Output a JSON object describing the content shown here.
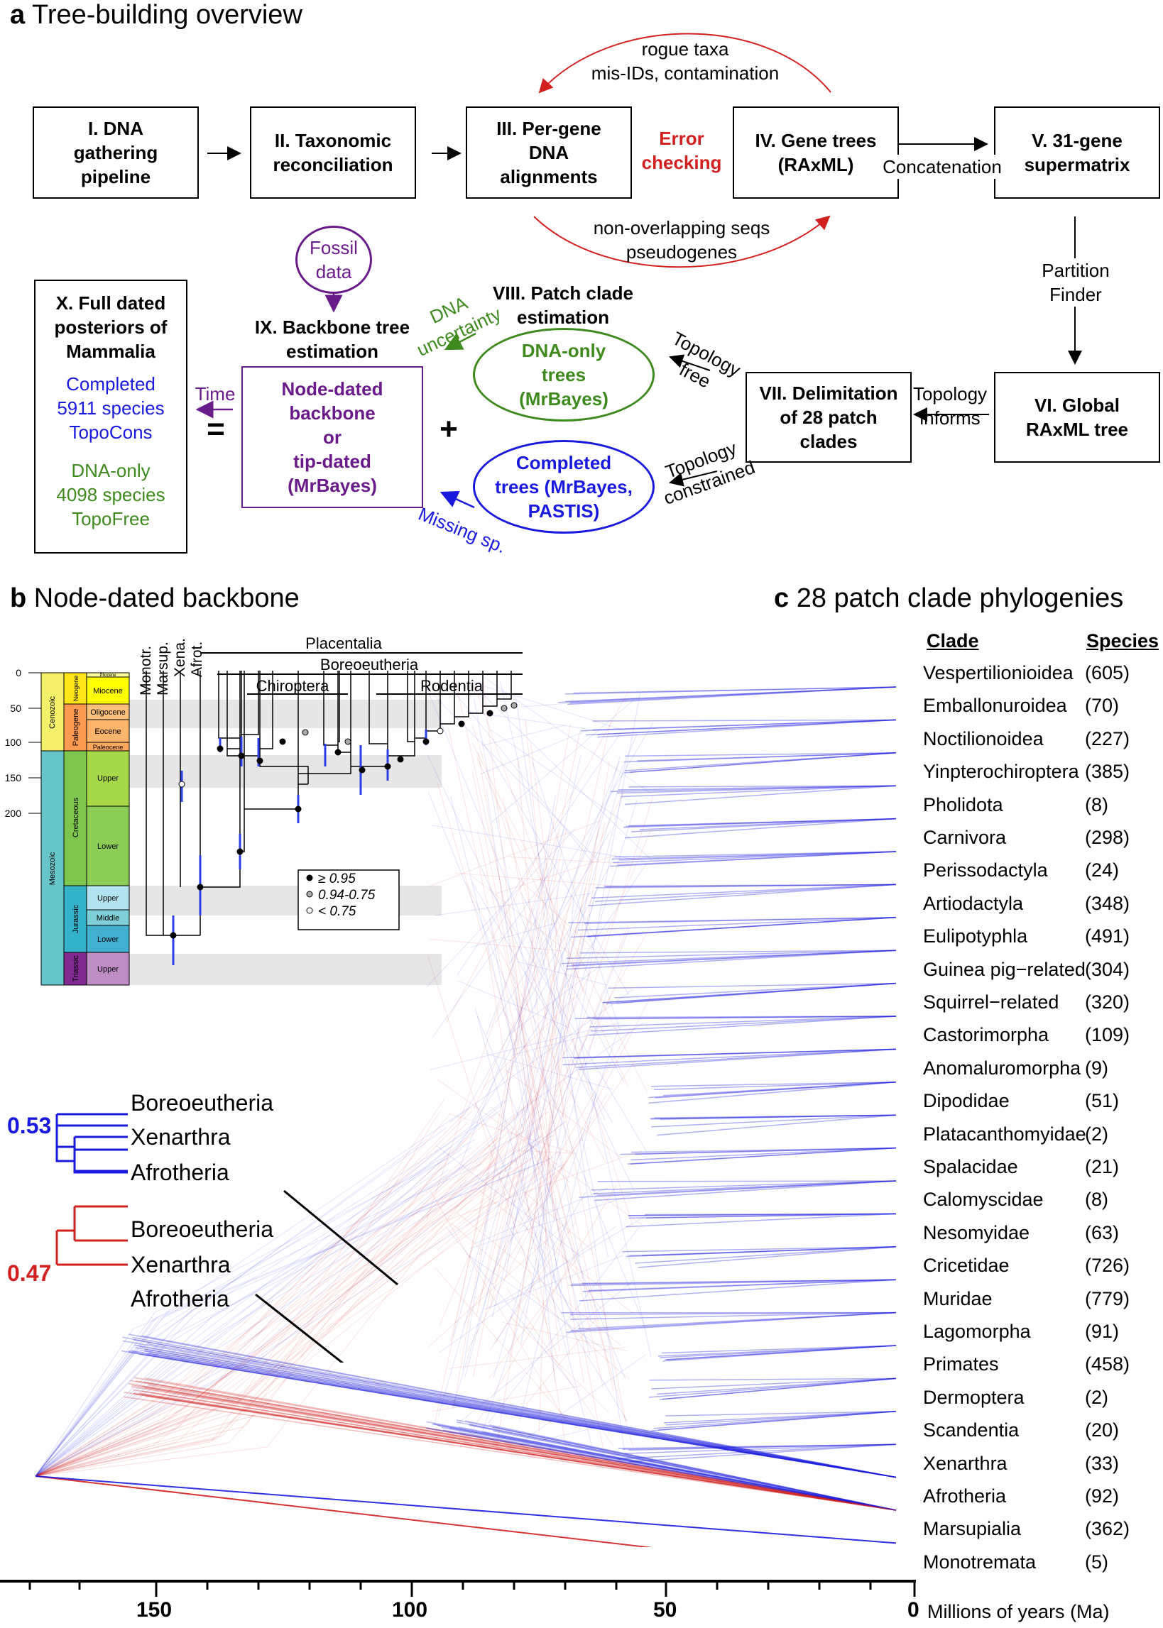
{
  "panel_a": {
    "letter": "a",
    "title": "Tree-building overview",
    "boxes": {
      "b1": "I. DNA\ngathering\npipeline",
      "b2": "II. Taxonomic\nreconciliation",
      "b3": "III. Per-gene\nDNA\nalignments",
      "b4": "IV. Gene trees\n(RAxML)",
      "b5": "V. 31-gene\nsupermatrix",
      "b6": "VI. Global\nRAxML tree",
      "b7": "VII. Delimitation\nof 28 patch\nclades",
      "b9": "Node-dated\nbackbone\nor\ntip-dated\n(MrBayes)",
      "b10_title": "X. Full dated\nposteriors of\nMammalia",
      "b10_blue": "Completed\n5911 species\nTopoCons",
      "b10_green": "DNA-only\n4098 species\nTopoFree"
    },
    "labels": {
      "error_checking": "Error\nchecking",
      "rogue": "rogue taxa\nmis-IDs, contamination",
      "nonoverlap": "non-overlapping seqs\npseudogenes",
      "concatenation": "Concatenation",
      "partition_finder": "Partition\nFinder",
      "topology_informs": "Topology\ninforms",
      "topology_free": "Topology\nfree",
      "topology_constrained": "Topology\nconstrained",
      "patch_title": "VIII. Patch clade\nestimation",
      "dna_only_trees": "DNA-only\ntrees\n(MrBayes)",
      "completed_trees": "Completed\ntrees (MrBayes,\nPASTIS)",
      "dna_uncertainty": "DNA\nuncertainty",
      "missing_sp": "Missing sp.",
      "backbone_title": "IX. Backbone tree\nestimation",
      "fossil": "Fossil\ndata",
      "time": "Time",
      "equals": "=",
      "plus": "+"
    }
  },
  "panel_b": {
    "letter": "b",
    "title": "Node-dated backbone",
    "taxa": [
      "Monotr.",
      "Marsup.",
      "Xena.",
      "Afrot."
    ],
    "groups": [
      "Placentalia",
      "Boreoeutheria",
      "Chiroptera",
      "Rodentia"
    ],
    "eras": [
      "Cenozoic",
      "Mesozoic"
    ],
    "periods": [
      "Neogene",
      "Paleogene",
      "Cretaceous",
      "Jurassic",
      "Triassic"
    ],
    "epochs": [
      "Pliocene",
      "Miocene",
      "Oligocene",
      "Eocene",
      "Paleocene",
      "Upper",
      "Lower",
      "Upper",
      "Middle",
      "Lower",
      "Upper"
    ],
    "ticks": [
      "0",
      "50",
      "100",
      "150",
      "200"
    ],
    "legend": [
      "≥ 0.95",
      "0.94-0.75",
      "< 0.75"
    ]
  },
  "panel_c": {
    "letter": "c",
    "title": "28 patch clade phylogenies",
    "col_clade": "Clade",
    "col_species": "Species",
    "clades": [
      {
        "name": "Vespertilionioidea",
        "species": "(605)"
      },
      {
        "name": "Emballonuroidea",
        "species": "(70)"
      },
      {
        "name": "Noctilionoidea",
        "species": "(227)"
      },
      {
        "name": "Yinpterochiroptera",
        "species": "(385)"
      },
      {
        "name": "Pholidota",
        "species": "(8)"
      },
      {
        "name": "Carnivora",
        "species": "(298)"
      },
      {
        "name": "Perissodactyla",
        "species": "(24)"
      },
      {
        "name": "Artiodactyla",
        "species": "(348)"
      },
      {
        "name": "Eulipotyphla",
        "species": "(491)"
      },
      {
        "name": "Guinea pig−related",
        "species": "(304)"
      },
      {
        "name": "Squirrel−related",
        "species": "(320)"
      },
      {
        "name": "Castorimorpha",
        "species": "(109)"
      },
      {
        "name": "Anomaluromorpha",
        "species": "(9)"
      },
      {
        "name": "Dipodidae",
        "species": "(51)"
      },
      {
        "name": "Platacanthomyidae",
        "species": "(2)"
      },
      {
        "name": "Spalacidae",
        "species": "(21)"
      },
      {
        "name": "Calomyscidae",
        "species": "(8)"
      },
      {
        "name": "Nesomyidae",
        "species": "(63)"
      },
      {
        "name": "Cricetidae",
        "species": "(726)"
      },
      {
        "name": "Muridae",
        "species": "(779)"
      },
      {
        "name": "Lagomorpha",
        "species": "(91)"
      },
      {
        "name": "Primates",
        "species": "(458)"
      },
      {
        "name": "Dermoptera",
        "species": "(2)"
      },
      {
        "name": "Scandentia",
        "species": "(20)"
      },
      {
        "name": "Xenarthra",
        "species": "(33)"
      },
      {
        "name": "Afrotheria",
        "species": "(92)"
      },
      {
        "name": "Marsupialia",
        "species": "(362)"
      },
      {
        "name": "Monotremata",
        "species": "(5)"
      }
    ],
    "inset_blue": {
      "prob": "0.53",
      "taxa": [
        "Boreoeutheria",
        "Xenarthra",
        "Afrotheria"
      ],
      "color": "#1a1adf"
    },
    "inset_red": {
      "prob": "0.47",
      "taxa": [
        "Boreoeutheria",
        "Xenarthra",
        "Afrotheria"
      ],
      "color": "#d21f1f"
    },
    "axis_ticks": [
      "150",
      "100",
      "50",
      "0"
    ],
    "axis_label": "Millions of years (Ma)"
  },
  "colors": {
    "blue": "#1a1adf",
    "red": "#d21f1f",
    "green": "#3f8a1f",
    "purple": "#6a1b8a"
  }
}
